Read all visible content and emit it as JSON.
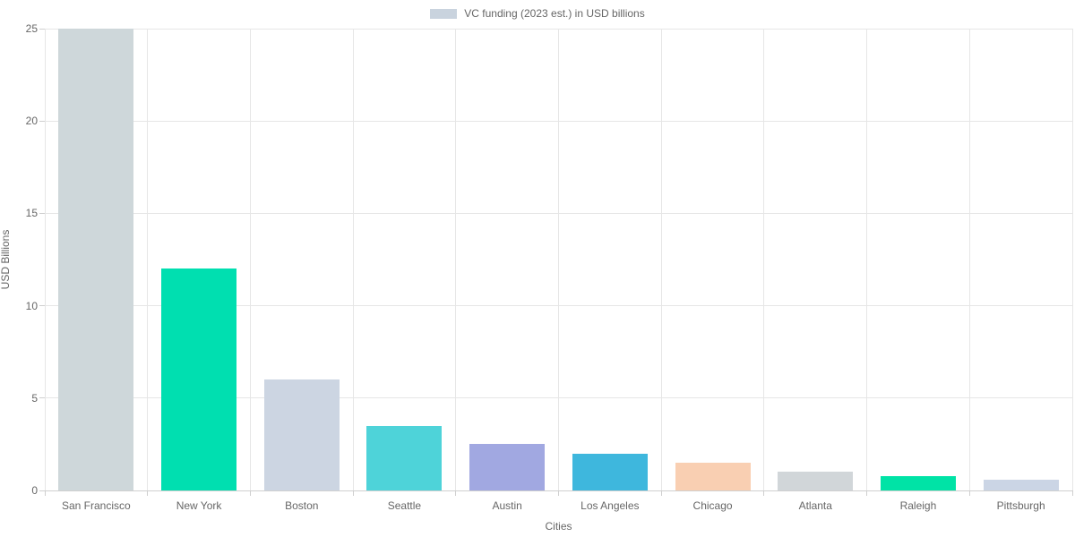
{
  "chart_data": {
    "type": "bar",
    "legend_label": "VC funding (2023 est.) in USD billions",
    "xlabel": "Cities",
    "ylabel": "USD Billions",
    "categories": [
      "San Francisco",
      "New York",
      "Boston",
      "Seattle",
      "Austin",
      "Los Angeles",
      "Chicago",
      "Atlanta",
      "Raleigh",
      "Pittsburgh"
    ],
    "values": [
      25,
      12,
      6,
      3.5,
      2.5,
      2,
      1.5,
      1,
      0.8,
      0.6
    ],
    "bar_colors": [
      "#ced7da",
      "#00dfb0",
      "#ccd5e2",
      "#4ed3d9",
      "#a1a8e1",
      "#3eb7dd",
      "#f9cfb2",
      "#d1d6d9",
      "#00e3a6",
      "#cbd5e5"
    ],
    "legend_swatch_color": "#c9d3de",
    "ylim": [
      0,
      25
    ],
    "yticks": [
      0,
      5,
      10,
      15,
      20,
      25
    ],
    "grid": true,
    "legend_position": "top-center",
    "colors": {
      "text": "#666666",
      "grid": "#e6e6e6",
      "axis": "#cfcfcf",
      "background": "#ffffff"
    }
  }
}
